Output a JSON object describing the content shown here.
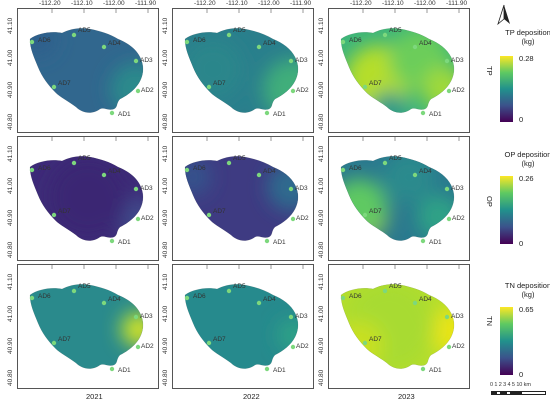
{
  "longitude_ticks": [
    "-112.20",
    "-112.10",
    "-112.00",
    "-111.90"
  ],
  "latitude_ticks": [
    "41.10",
    "41.00",
    "40.90",
    "40.80"
  ],
  "years": [
    "2021",
    "2022",
    "2023"
  ],
  "rows": [
    {
      "row_label": "TP",
      "legend_title_line1": "TP deposition",
      "legend_title_line2": "(kg)",
      "legend_max": "0.28",
      "legend_min": "0"
    },
    {
      "row_label": "OP",
      "legend_title_line1": "OP deposition",
      "legend_title_line2": "(kg)",
      "legend_max": "0.26",
      "legend_min": "0"
    },
    {
      "row_label": "TN",
      "legend_title_line1": "TN deposition",
      "legend_title_line2": "(kg)",
      "legend_max": "0.65",
      "legend_min": "0"
    }
  ],
  "sites": [
    "AD1",
    "AD2",
    "AD3",
    "AD4",
    "AD5",
    "AD6",
    "AD7"
  ],
  "scale_bar": {
    "text": "0 1 2 3 4 5 10 km"
  },
  "north_arrow": "north-arrow-icon",
  "colors": {
    "viridis_low": "#440154",
    "viridis_mid": "#21918c",
    "viridis_high": "#fde725",
    "site_marker": "#7dd87d"
  }
}
